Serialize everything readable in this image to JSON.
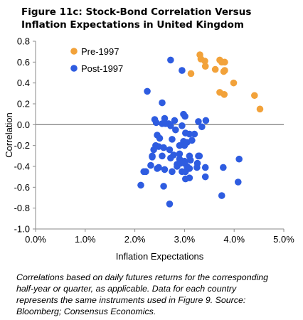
{
  "title_lines": [
    "Figure 11c: Stock-Bond Correlation Versus",
    "Inflation Expectations in United Kingdom"
  ],
  "caption_lines": [
    "Correlations based on daily futures returns for the corresponding",
    "half-year or quarter, as applicable. Data for each country",
    "represents the same instruments used in Figure 9. Source:",
    "Bloomberg; Consensus Economics."
  ],
  "chart_data": {
    "type": "scatter",
    "xlabel": "Inflation Expectations",
    "ylabel": "Correlation",
    "xlim": [
      0.0,
      5.0
    ],
    "ylim": [
      -1.0,
      0.8
    ],
    "x_ticks": [
      "0.0%",
      "1.0%",
      "2.0%",
      "3.0%",
      "4.0%",
      "5.0%"
    ],
    "y_ticks": [
      "0.8",
      "0.6",
      "0.4",
      "0.2",
      "0.0",
      "-0.2",
      "-0.4",
      "-0.6",
      "-0.8",
      "-1.0"
    ],
    "legend_position": "top-left",
    "grid": false,
    "series": [
      {
        "name": "Pre-1997",
        "color": "#F2A23A",
        "x": [
          3.31,
          3.33,
          3.41,
          3.42,
          3.13,
          3.62,
          3.71,
          3.75,
          3.79,
          3.81,
          3.81,
          3.99,
          3.71,
          3.8,
          4.41,
          4.52
        ],
        "y": [
          0.67,
          0.63,
          0.61,
          0.56,
          0.49,
          0.53,
          0.62,
          0.6,
          0.51,
          0.6,
          0.52,
          0.4,
          0.31,
          0.29,
          0.28,
          0.15
        ]
      },
      {
        "name": "Post-1997",
        "color": "#2E5CE0",
        "x": [
          2.72,
          2.95,
          2.25,
          2.55,
          2.6,
          2.4,
          2.43,
          2.8,
          2.68,
          2.98,
          3.01,
          3.28,
          3.43,
          2.55,
          2.62,
          3.35,
          2.72,
          2.95,
          2.82,
          3.02,
          3.1,
          2.45,
          2.5,
          2.75,
          2.98,
          3.05,
          3.15,
          3.2,
          2.42,
          2.38,
          2.9,
          3.0,
          2.48,
          2.58,
          2.7,
          2.35,
          2.55,
          2.35,
          2.72,
          2.78,
          2.9,
          3.1,
          3.28,
          3.3,
          2.9,
          3.0,
          3.12,
          3.26,
          3.42,
          4.1,
          2.32,
          2.45,
          2.6,
          2.85,
          2.95,
          3.02,
          3.1,
          3.25,
          2.85,
          2.92,
          3.0,
          3.05,
          3.78,
          2.22,
          2.48,
          2.75,
          3.1,
          3.42,
          2.18,
          3.02,
          2.12,
          2.58,
          4.08,
          3.75,
          2.7
        ],
        "y": [
          0.62,
          0.52,
          0.32,
          0.21,
          0.06,
          0.05,
          0.02,
          0.04,
          0.01,
          0.1,
          0.08,
          0.03,
          0.04,
          0.01,
          0.01,
          -0.02,
          -0.01,
          -0.01,
          -0.05,
          -0.08,
          -0.09,
          -0.1,
          -0.13,
          -0.14,
          -0.16,
          -0.17,
          -0.15,
          -0.09,
          -0.2,
          -0.24,
          -0.2,
          -0.2,
          -0.21,
          -0.22,
          -0.24,
          -0.3,
          -0.3,
          -0.31,
          -0.32,
          -0.29,
          -0.28,
          -0.3,
          -0.3,
          -0.3,
          -0.33,
          -0.35,
          -0.34,
          -0.37,
          -0.41,
          -0.33,
          -0.39,
          -0.42,
          -0.43,
          -0.4,
          -0.45,
          -0.45,
          -0.42,
          -0.41,
          -0.38,
          -0.37,
          -0.37,
          -0.4,
          -0.41,
          -0.45,
          -0.41,
          -0.45,
          -0.51,
          -0.5,
          -0.45,
          -0.52,
          -0.58,
          -0.59,
          -0.55,
          -0.68,
          -0.76
        ]
      }
    ]
  }
}
